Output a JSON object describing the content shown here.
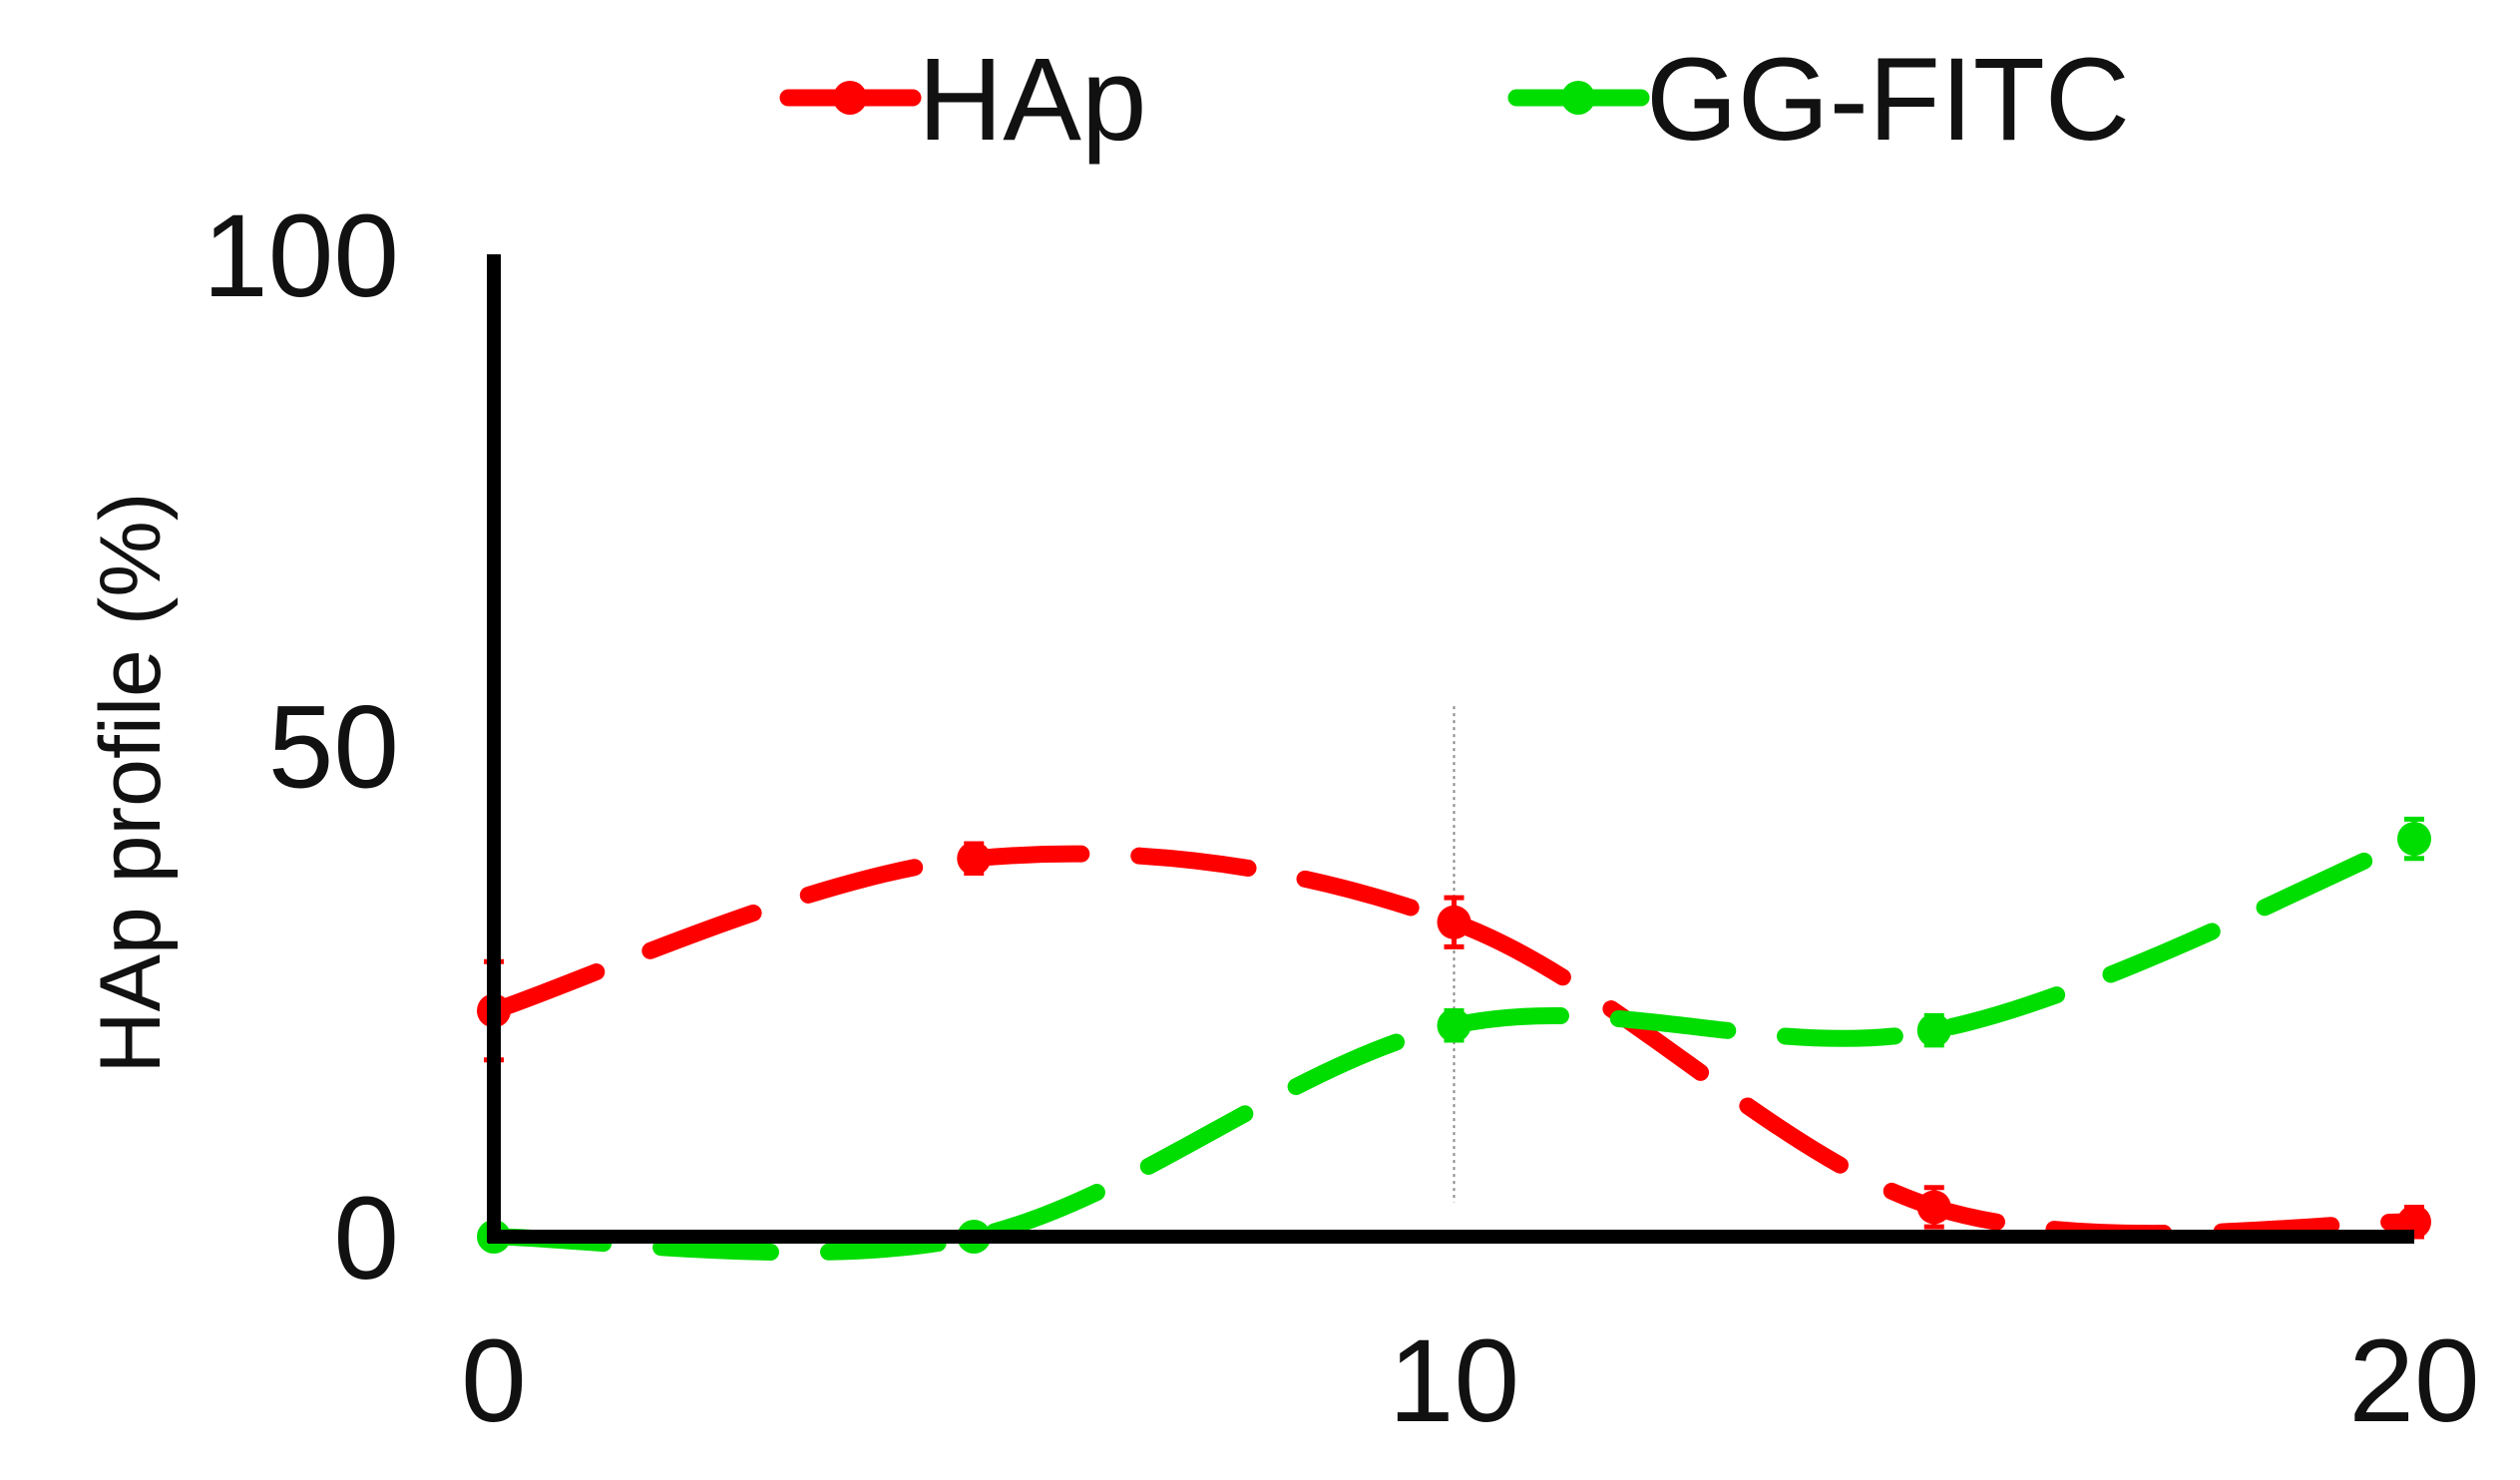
{
  "chart_data": {
    "type": "line",
    "title": "",
    "xlabel": "",
    "ylabel": "HAp profile (%)",
    "xlim": [
      0,
      20
    ],
    "ylim": [
      0,
      100
    ],
    "x_ticks": [
      "0",
      "10",
      "20"
    ],
    "y_ticks": [
      "0",
      "50",
      "100"
    ],
    "grid": false,
    "legend_position": "top-center",
    "vertical_marker_x": 10,
    "series": [
      {
        "name": "HAp",
        "color": "#ff0000",
        "line_style": "dashed",
        "x": [
          0,
          5,
          10,
          15,
          20
        ],
        "y": [
          23,
          38.5,
          32,
          3,
          1.5
        ],
        "error": [
          5,
          1.5,
          2.5,
          2,
          1.5
        ]
      },
      {
        "name": "GG-FITC",
        "color": "#00dd00",
        "line_style": "dashed",
        "x": [
          0,
          5,
          10,
          15,
          20
        ],
        "y": [
          0,
          0,
          21.5,
          21,
          40.5
        ],
        "error": [
          0,
          0,
          1.5,
          1.5,
          2
        ]
      }
    ]
  }
}
